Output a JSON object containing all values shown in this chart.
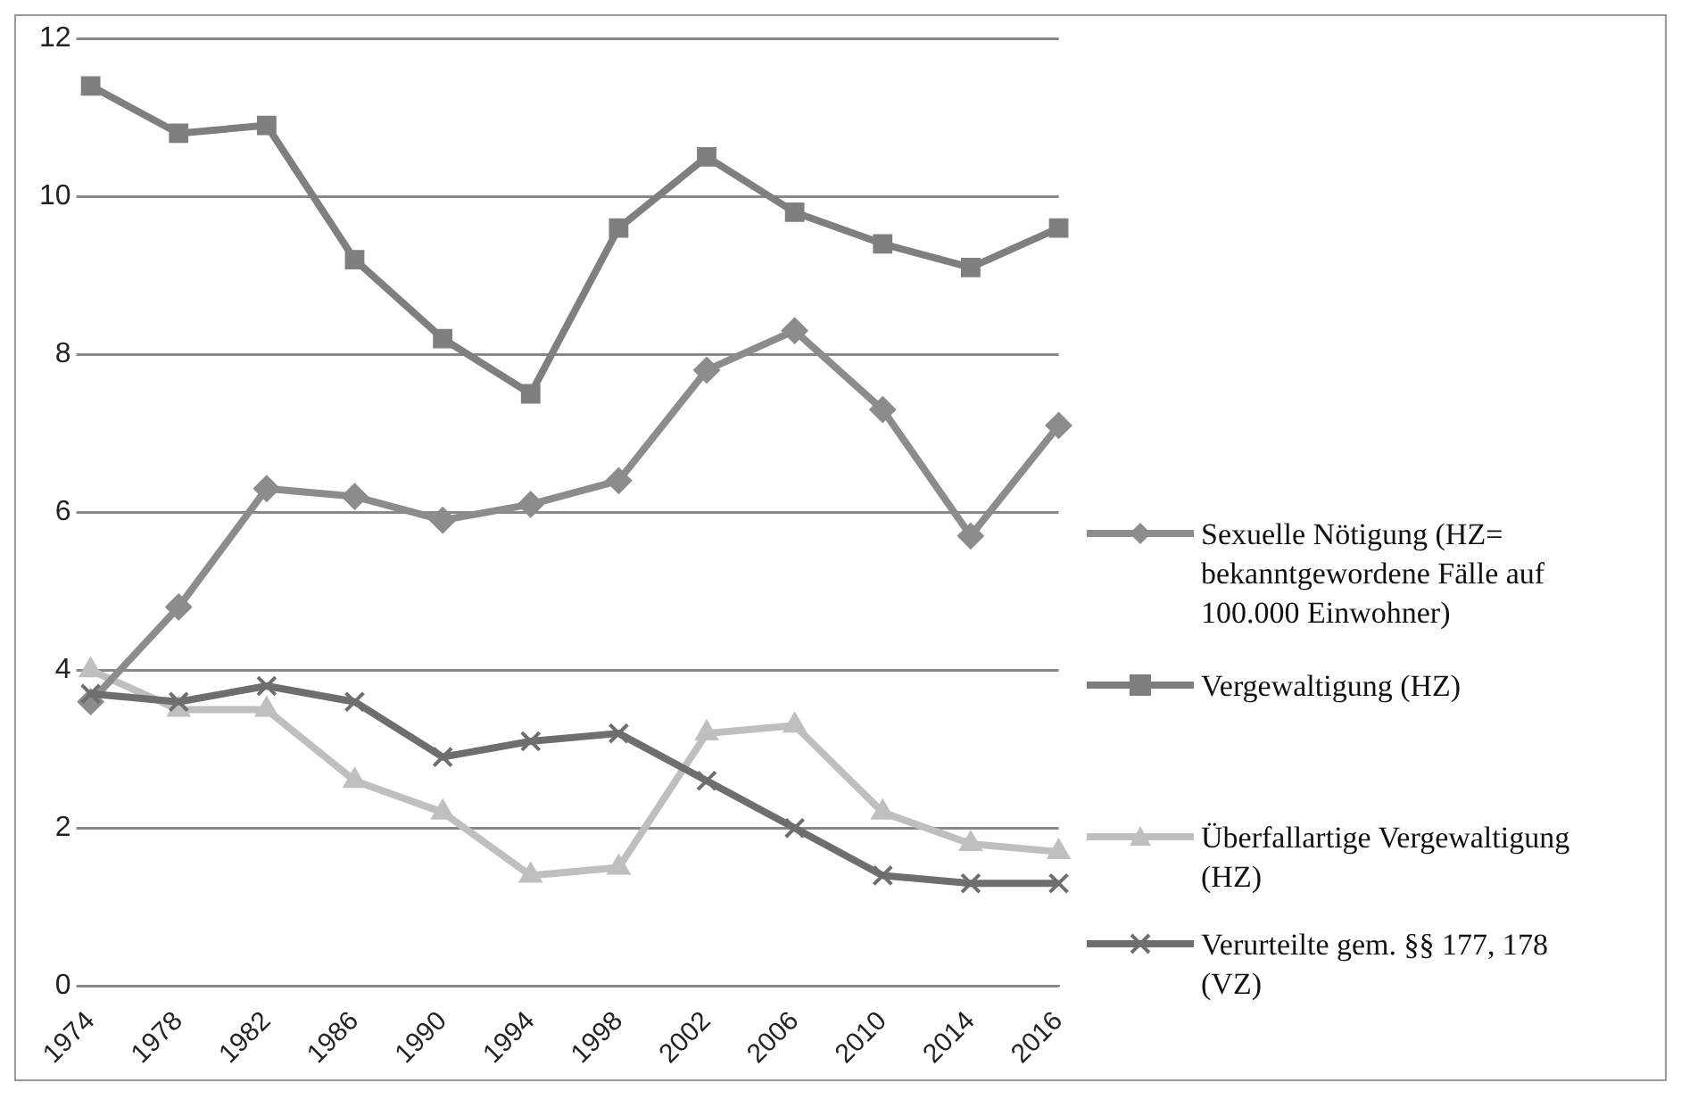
{
  "chart_data": {
    "type": "line",
    "categories": [
      "1974",
      "1978",
      "1982",
      "1986",
      "1990",
      "1994",
      "1998",
      "2002",
      "2006",
      "2010",
      "2014",
      "2016"
    ],
    "series": [
      {
        "name": "Sexuelle Nötigung (HZ= bekanntgewordene Fälle auf 100.000 Einwohner)",
        "color": "#8c8c8c",
        "marker": "diamond",
        "values": [
          3.6,
          4.8,
          6.3,
          6.2,
          5.9,
          6.1,
          6.4,
          7.8,
          8.3,
          7.3,
          5.7,
          7.1
        ]
      },
      {
        "name": "Vergewaltigung (HZ)",
        "color": "#7f7f7f",
        "marker": "square",
        "values": [
          11.4,
          10.8,
          10.9,
          9.2,
          8.2,
          7.5,
          9.6,
          10.5,
          9.8,
          9.4,
          9.1,
          9.6
        ]
      },
      {
        "name": "Überfallartige Vergewaltigung (HZ)",
        "color": "#bfbfbf",
        "marker": "triangle",
        "values": [
          4.0,
          3.5,
          3.5,
          2.6,
          2.2,
          1.4,
          1.5,
          3.2,
          3.3,
          2.2,
          1.8,
          1.7
        ]
      },
      {
        "name": "Verurteilte gem. §§  177, 178 (VZ)",
        "color": "#6e6e6e",
        "marker": "cross",
        "values": [
          3.7,
          3.6,
          3.8,
          3.6,
          2.9,
          3.1,
          3.2,
          2.6,
          2.0,
          1.4,
          1.3,
          1.3
        ]
      }
    ],
    "ylim": [
      0,
      12
    ],
    "yticks": [
      0,
      2,
      4,
      6,
      8,
      10,
      12
    ],
    "grid": "y",
    "legend": "right"
  }
}
